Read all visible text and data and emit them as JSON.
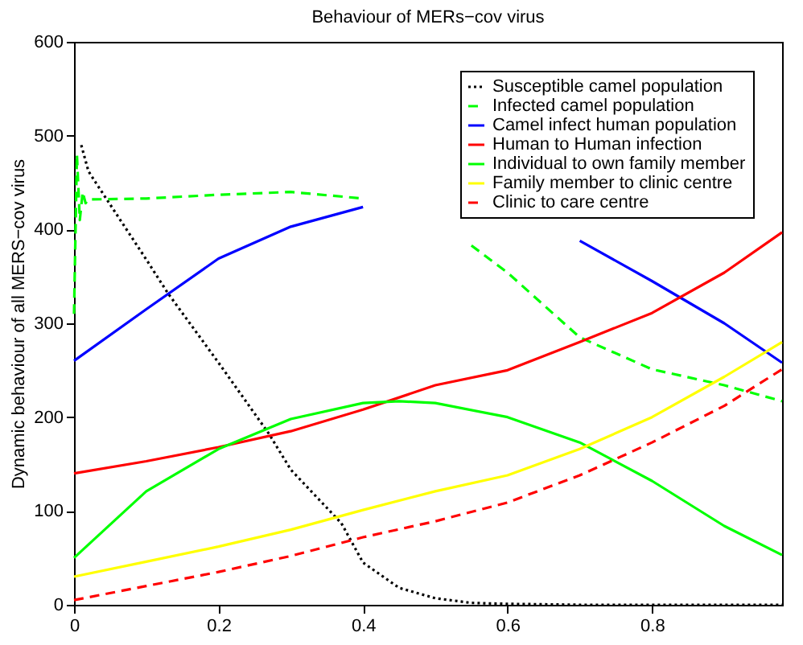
{
  "chart_data": {
    "type": "line",
    "title": "Behaviour of MERs−cov virus",
    "ylabel": "Dynamic behaviour of all MERS−cov virus",
    "xlim": [
      0,
      0.98
    ],
    "xticks": [
      0,
      0.2,
      0.4,
      0.6,
      0.8
    ],
    "ylim": [
      0,
      600
    ],
    "yticks": [
      0,
      100,
      200,
      300,
      400,
      500,
      600
    ],
    "grid": false,
    "legend": "top right",
    "series": [
      {
        "name": "Susceptible camel population",
        "color": "#000000",
        "line_style": "dotted",
        "x": [
          0.01,
          0.02,
          0.03,
          0.1,
          0.13,
          0.2,
          0.27,
          0.3,
          0.37,
          0.4,
          0.45,
          0.5,
          0.55,
          0.6,
          0.7,
          0.8,
          0.9,
          0.98
        ],
        "values": [
          490,
          462,
          450,
          368,
          332,
          258,
          182,
          144,
          87,
          45,
          18,
          7,
          2,
          1,
          0,
          0,
          0,
          0
        ]
      },
      {
        "name": "Infected camel population",
        "color": "#00ff00",
        "line_style": "dashed",
        "x": [
          0,
          0.004,
          0.008,
          0.012,
          0.016,
          0.02,
          0.1,
          0.2,
          0.3,
          0.4,
          0.45,
          0.5,
          0.55,
          0.6,
          0.7,
          0.8,
          0.9,
          0.98
        ],
        "values": [
          310,
          480,
          410,
          440,
          428,
          432,
          433,
          437,
          440,
          433,
          null,
          null,
          383,
          354,
          285,
          251,
          234,
          217
        ]
      },
      {
        "name": "Camel infect human population",
        "color": "#0000ff",
        "line_style": "solid",
        "x": [
          0,
          0.1,
          0.2,
          0.3,
          0.4,
          0.5,
          0.6,
          0.7,
          0.8,
          0.9,
          0.98
        ],
        "values": [
          260,
          315,
          369,
          403,
          424,
          null,
          null,
          388,
          345,
          300,
          258
        ]
      },
      {
        "name": "Human to Human infection",
        "color": "#ff0000",
        "line_style": "solid",
        "x": [
          0,
          0.1,
          0.2,
          0.3,
          0.4,
          0.5,
          0.6,
          0.7,
          0.8,
          0.9,
          0.98
        ],
        "values": [
          140,
          153,
          168,
          185,
          208,
          234,
          250,
          280,
          311,
          354,
          397
        ]
      },
      {
        "name": "Individual to own family member",
        "color": "#00ff00",
        "line_style": "solid",
        "x": [
          0,
          0.1,
          0.2,
          0.3,
          0.4,
          0.45,
          0.5,
          0.6,
          0.7,
          0.8,
          0.9,
          0.98
        ],
        "values": [
          50,
          121,
          166,
          198,
          215,
          217,
          215,
          200,
          173,
          132,
          84,
          53
        ]
      },
      {
        "name": "Family member to clinic centre",
        "color": "#ffff00",
        "line_style": "solid",
        "x": [
          0,
          0.1,
          0.2,
          0.3,
          0.4,
          0.5,
          0.6,
          0.7,
          0.8,
          0.9,
          0.98
        ],
        "values": [
          30,
          46,
          62,
          80,
          101,
          121,
          138,
          166,
          200,
          243,
          280
        ]
      },
      {
        "name": "Clinic to care centre",
        "color": "#ff0000",
        "line_style": "dashed",
        "x": [
          0,
          0.1,
          0.2,
          0.3,
          0.4,
          0.5,
          0.6,
          0.7,
          0.8,
          0.9,
          0.98
        ],
        "values": [
          5,
          20,
          35,
          52,
          72,
          89,
          109,
          138,
          173,
          212,
          251
        ]
      }
    ]
  }
}
